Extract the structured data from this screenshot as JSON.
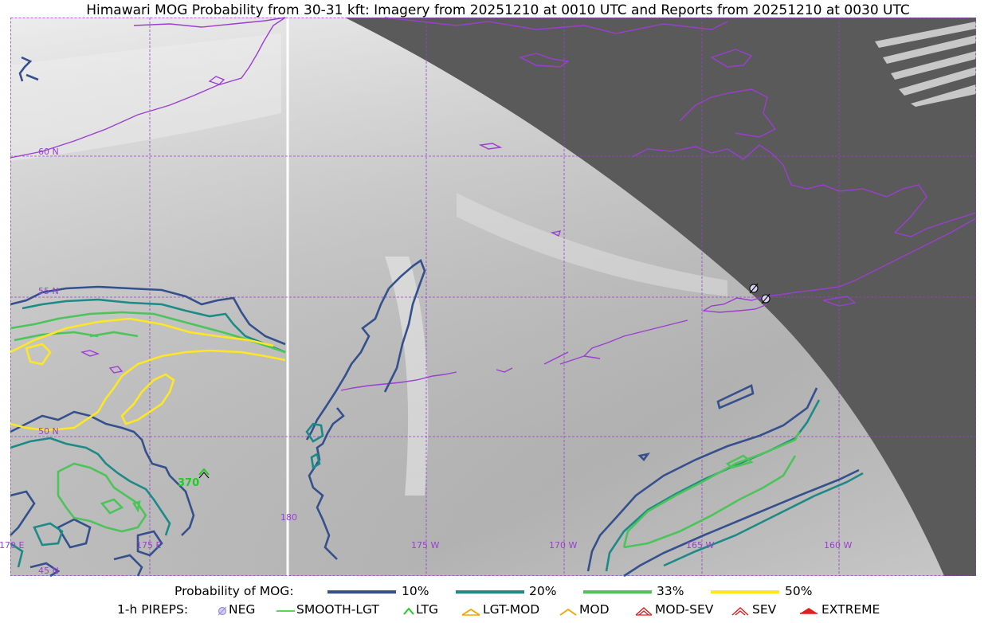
{
  "title": "Himawari MOG Probability from 30-31 kft: Imagery from 20251210 at 0010 UTC and Reports from 20251210 at 0030 UTC",
  "map": {
    "lat_labels": [
      "60 N",
      "55 N",
      "50 N",
      "45 N"
    ],
    "lon_labels": [
      "170 E",
      "175 E",
      "180",
      "175 W",
      "170 W",
      "165 W",
      "160 W"
    ],
    "pirep_label": "370",
    "colors": {
      "coast": "#9a3fd0",
      "grid": "#9a3fd0",
      "no_data": "#5a5a5a",
      "p10": "#35508c",
      "p20": "#1e8a88",
      "p33": "#4cc45a",
      "p50": "#fde725",
      "pirep_smooth": "#22cc22"
    }
  },
  "legend": {
    "mog_title": "Probability of MOG:",
    "mog_items": [
      {
        "label": "10%",
        "color": "#35508c"
      },
      {
        "label": "20%",
        "color": "#1e8a88"
      },
      {
        "label": "33%",
        "color": "#4cc45a"
      },
      {
        "label": "50%",
        "color": "#fde725"
      }
    ],
    "pirep_title": "1-h PIREPS:",
    "pirep_items": [
      {
        "label": "NEG",
        "icon": "neg-icon"
      },
      {
        "label": "SMOOTH-LGT",
        "icon": "smooth-lgt-icon"
      },
      {
        "label": "LTG",
        "icon": "ltg-icon"
      },
      {
        "label": "LGT-MOD",
        "icon": "lgt-mod-icon"
      },
      {
        "label": "MOD",
        "icon": "mod-icon"
      },
      {
        "label": "MOD-SEV",
        "icon": "mod-sev-icon"
      },
      {
        "label": "SEV",
        "icon": "sev-icon"
      },
      {
        "label": "EXTREME",
        "icon": "extreme-icon"
      }
    ]
  }
}
